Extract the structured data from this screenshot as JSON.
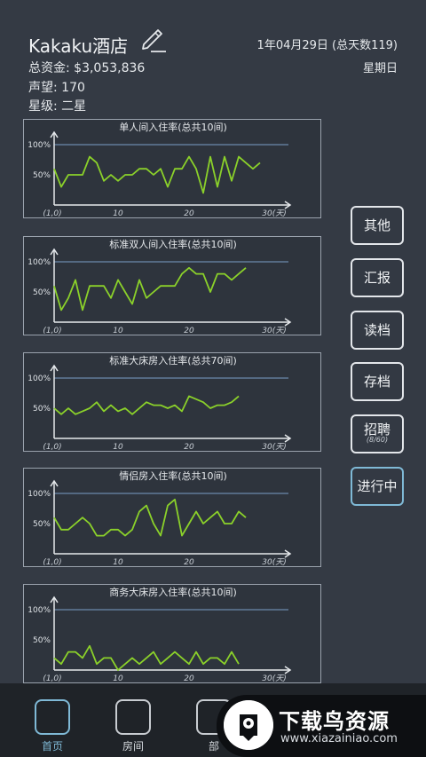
{
  "header": {
    "hotel_name": "Kakaku酒店",
    "funds": "总资金: $3,053,836",
    "reputation": "声望: 170",
    "rating": "星级: 二星",
    "date": "1年04月29日 (总天数119)",
    "weekday": "星期日"
  },
  "charts": [
    {
      "title": "单人间入住率(总共10间)",
      "y_labels": [
        "100%",
        "50%"
      ],
      "x_labels": [
        "(1,0)",
        "10",
        "20",
        "30(天)"
      ]
    },
    {
      "title": "标准双人间入住率(总共10间)",
      "y_labels": [
        "100%",
        "50%"
      ],
      "x_labels": [
        "(1,0)",
        "10",
        "20",
        "30(天)"
      ]
    },
    {
      "title": "标准大床房入住率(总共70间)",
      "y_labels": [
        "100%",
        "50%"
      ],
      "x_labels": [
        "(1,0)",
        "10",
        "20",
        "30(天)"
      ]
    },
    {
      "title": "情侣房入住率(总共10间)",
      "y_labels": [
        "100%",
        "50%"
      ],
      "x_labels": [
        "(1,0)",
        "10",
        "20",
        "30(天)"
      ]
    },
    {
      "title": "商务大床房入住率(总共10间)",
      "y_labels": [
        "100%",
        "50%"
      ],
      "x_labels": [
        "(1,0)",
        "10",
        "20",
        "30(天)"
      ]
    }
  ],
  "chart_data": [
    {
      "type": "line",
      "title": "单人间入住率(总共10间)",
      "xlabel": "天",
      "ylabel": "",
      "ylim": [
        0,
        100
      ],
      "xlim": [
        1,
        30
      ],
      "grid": false,
      "series": [
        {
          "values": [
            60,
            30,
            50,
            50,
            50,
            80,
            70,
            40,
            50,
            40,
            50,
            50,
            60,
            60,
            50,
            60,
            30,
            60,
            60,
            80,
            60,
            20,
            80,
            30,
            80,
            40,
            80,
            70,
            60,
            70
          ]
        }
      ],
      "color": "#8bd12a"
    },
    {
      "type": "line",
      "title": "标准双人间入住率(总共10间)",
      "xlabel": "天",
      "ylabel": "",
      "ylim": [
        0,
        100
      ],
      "xlim": [
        1,
        30
      ],
      "grid": false,
      "series": [
        {
          "values": [
            60,
            20,
            40,
            70,
            20,
            60,
            60,
            60,
            40,
            70,
            50,
            30,
            70,
            40,
            50,
            60,
            60,
            60,
            80,
            90,
            80,
            80,
            50,
            80,
            80,
            70,
            80,
            90
          ]
        }
      ],
      "color": "#8bd12a"
    },
    {
      "type": "line",
      "title": "标准大床房入住率(总共70间)",
      "xlabel": "天",
      "ylabel": "",
      "ylim": [
        0,
        100
      ],
      "xlim": [
        1,
        30
      ],
      "grid": false,
      "series": [
        {
          "values": [
            50,
            40,
            50,
            40,
            45,
            50,
            60,
            45,
            55,
            45,
            50,
            40,
            50,
            60,
            55,
            55,
            50,
            55,
            45,
            70,
            65,
            60,
            50,
            55,
            55,
            60,
            70
          ]
        }
      ],
      "color": "#8bd12a"
    },
    {
      "type": "line",
      "title": "情侣房入住率(总共10间)",
      "xlabel": "天",
      "ylabel": "",
      "ylim": [
        0,
        100
      ],
      "xlim": [
        1,
        30
      ],
      "grid": false,
      "series": [
        {
          "values": [
            60,
            40,
            40,
            50,
            60,
            50,
            30,
            30,
            40,
            40,
            30,
            40,
            70,
            80,
            50,
            30,
            80,
            90,
            30,
            50,
            70,
            50,
            60,
            70,
            50,
            50,
            70,
            60
          ]
        }
      ],
      "color": "#8bd12a"
    },
    {
      "type": "line",
      "title": "商务大床房入住率(总共10间)",
      "xlabel": "天",
      "ylabel": "",
      "ylim": [
        0,
        100
      ],
      "xlim": [
        1,
        30
      ],
      "grid": false,
      "series": [
        {
          "values": [
            20,
            10,
            30,
            30,
            20,
            40,
            10,
            20,
            20,
            0,
            10,
            20,
            10,
            20,
            30,
            10,
            20,
            30,
            20,
            10,
            30,
            10,
            20,
            20,
            10,
            30,
            10
          ]
        }
      ],
      "color": "#8bd12a"
    }
  ],
  "side_buttons": [
    {
      "label": "其他"
    },
    {
      "label": "汇报"
    },
    {
      "label": "读档"
    },
    {
      "label": "存档"
    },
    {
      "label": "招聘",
      "sub": "(8/60)"
    },
    {
      "label": "进行中"
    }
  ],
  "tabs": [
    {
      "label": "首页"
    },
    {
      "label": "房间"
    },
    {
      "label": "部"
    }
  ],
  "watermark": {
    "title": "下载鸟资源",
    "url": "www.xiazainiao.com"
  },
  "colors": {
    "background": "#343a44",
    "line": "#8bd12a",
    "accent": "#7fb9d6",
    "reference_line": "#7a9ec8"
  }
}
